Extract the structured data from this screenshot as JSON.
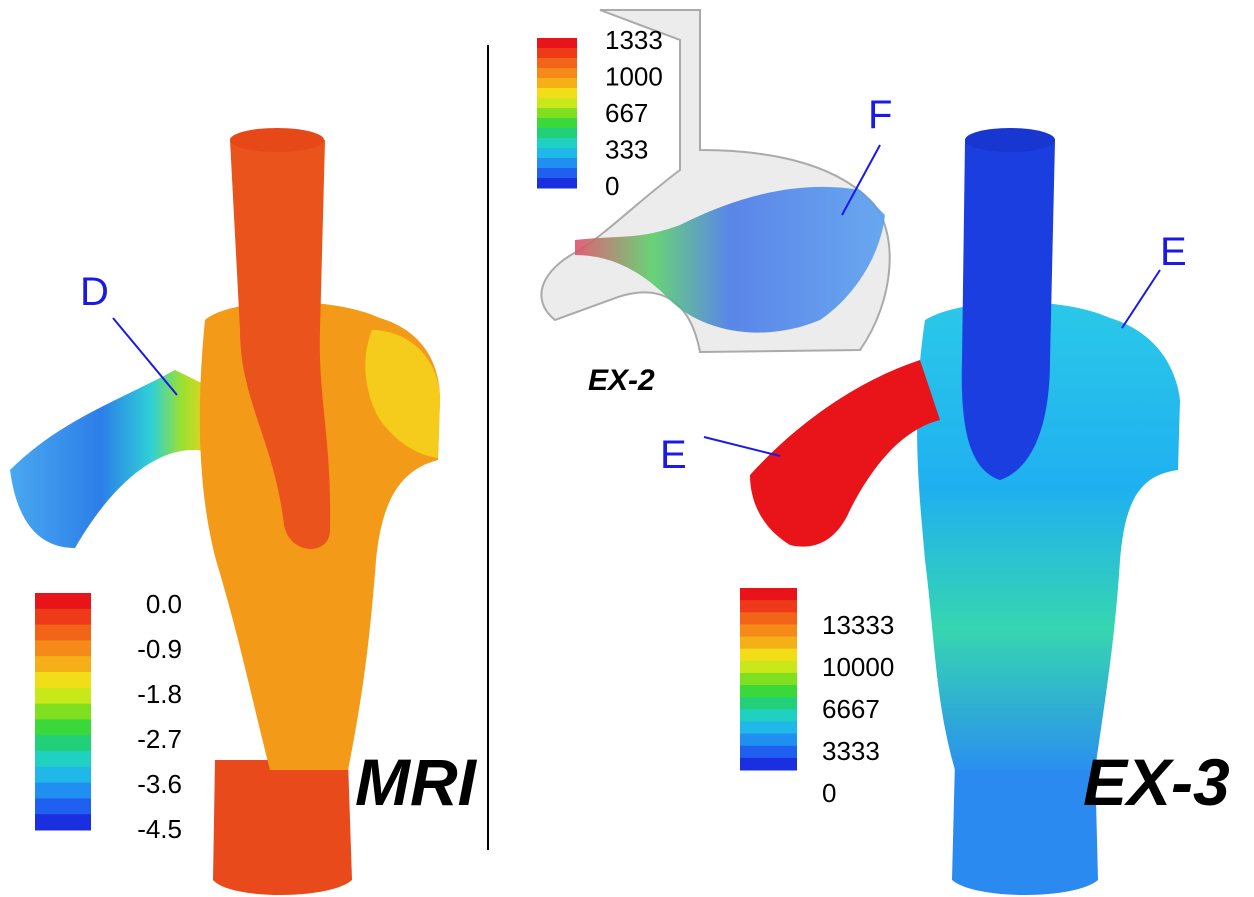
{
  "panels": {
    "mri": {
      "label": "MRI",
      "annotation": "D",
      "legend": [
        "0.0",
        "-0.9",
        "-1.8",
        "-2.7",
        "-3.6",
        "-4.5"
      ]
    },
    "ex2": {
      "label": "EX-2",
      "annotation": "F",
      "legend": [
        "1333",
        "1000",
        "667",
        "333",
        "0"
      ]
    },
    "ex3": {
      "label": "EX-3",
      "annotations": [
        "E",
        "E"
      ],
      "legend": [
        "13333",
        "10000",
        "6667",
        "3333",
        "0"
      ]
    }
  }
}
